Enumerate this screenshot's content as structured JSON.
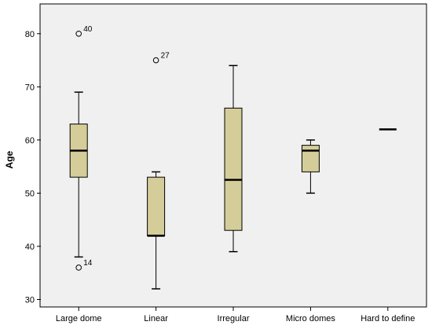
{
  "chart_data": {
    "type": "boxplot",
    "title": "",
    "xlabel": "",
    "ylabel": "Age",
    "ylim": [
      28,
      85
    ],
    "yticks": [
      30,
      40,
      50,
      60,
      70,
      80
    ],
    "grid": false,
    "legend": "none",
    "colors": {
      "box_fill": "#d4cd99",
      "plot_background": "#f0f0f0",
      "line": "#000000"
    },
    "categories": [
      "Large dome",
      "Linear",
      "Irregular",
      "Micro domes",
      "Hard to define"
    ],
    "boxes": [
      {
        "category": "Large dome",
        "whisker_low": 38,
        "q1": 53,
        "median": 58,
        "q3": 63,
        "whisker_high": 69,
        "outliers": [
          {
            "value": 80,
            "label": "40"
          },
          {
            "value": 36,
            "label": "14"
          }
        ]
      },
      {
        "category": "Linear",
        "whisker_low": 32,
        "q1": 42,
        "median": 42,
        "q3": 53,
        "whisker_high": 54,
        "outliers": [
          {
            "value": 75,
            "label": "27"
          }
        ]
      },
      {
        "category": "Irregular",
        "whisker_low": 39,
        "q1": 43,
        "median": 52.5,
        "q3": 66,
        "whisker_high": 74,
        "outliers": []
      },
      {
        "category": "Micro domes",
        "whisker_low": 50,
        "q1": 54,
        "median": 58,
        "q3": 59,
        "whisker_high": 60,
        "outliers": []
      },
      {
        "category": "Hard to define",
        "whisker_low": 62,
        "q1": 62,
        "median": 62,
        "q3": 62,
        "whisker_high": 62,
        "outliers": []
      }
    ]
  }
}
